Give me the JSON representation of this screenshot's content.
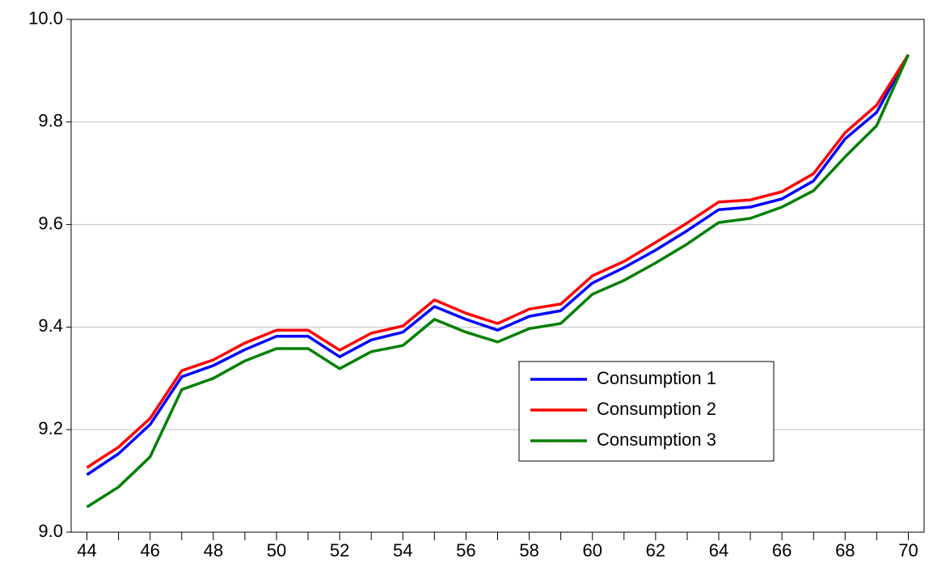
{
  "chart_data": {
    "type": "line",
    "x": [
      44,
      45,
      46,
      47,
      48,
      49,
      50,
      51,
      52,
      53,
      54,
      55,
      56,
      57,
      58,
      59,
      60,
      61,
      62,
      63,
      64,
      65,
      66,
      67,
      68,
      69,
      70
    ],
    "xlim": [
      43.5,
      70.5
    ],
    "xticks": [
      44,
      46,
      48,
      50,
      52,
      54,
      56,
      58,
      60,
      62,
      64,
      66,
      68,
      70
    ],
    "ylim": [
      9.0,
      10.0
    ],
    "yticks": [
      {
        "value": 9.0,
        "label": "9.0"
      },
      9.2,
      9.4,
      9.6,
      9.8,
      {
        "value": 10.0,
        "label": "10.0"
      }
    ],
    "grid": true,
    "legend": "lower right",
    "series": [
      {
        "name": "Consumption 1",
        "color": "#0000ff",
        "values": [
          9.112,
          9.153,
          9.21,
          9.303,
          9.325,
          9.356,
          9.382,
          9.382,
          9.342,
          9.375,
          9.39,
          9.44,
          9.415,
          9.394,
          9.421,
          9.432,
          9.486,
          9.516,
          9.55,
          9.588,
          9.629,
          9.634,
          9.65,
          9.685,
          9.767,
          9.819,
          9.931
        ]
      },
      {
        "name": "Consumption 2",
        "color": "#ff0000",
        "values": [
          9.126,
          9.166,
          9.222,
          9.315,
          9.336,
          9.369,
          9.394,
          9.394,
          9.355,
          9.388,
          9.402,
          9.453,
          9.427,
          9.407,
          9.435,
          9.445,
          9.5,
          9.528,
          9.565,
          9.603,
          9.644,
          9.648,
          9.664,
          9.699,
          9.779,
          9.833,
          9.931
        ]
      },
      {
        "name": "Consumption 3",
        "color": "#008000",
        "values": [
          9.049,
          9.088,
          9.147,
          9.278,
          9.3,
          9.334,
          9.358,
          9.358,
          9.319,
          9.352,
          9.364,
          9.415,
          9.39,
          9.371,
          9.397,
          9.407,
          9.464,
          9.491,
          9.525,
          9.562,
          9.604,
          9.612,
          9.634,
          9.666,
          9.732,
          9.793,
          9.931
        ]
      }
    ]
  }
}
